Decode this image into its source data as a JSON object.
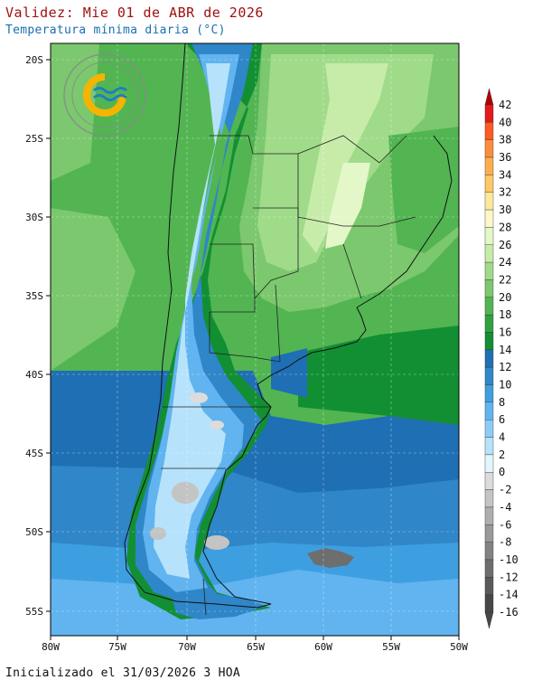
{
  "header": {
    "title": "Validez: Mie 01 de ABR de 2026",
    "subtitle": "Temperatura mínima diaria (°C)"
  },
  "footer": {
    "text": "Inicializado el 31/03/2026 3 HOA"
  },
  "logo": {
    "top_text": "SERVICIO METEOROLÓGICO NACIONAL",
    "bottom_text": "ARGENTINA"
  },
  "map": {
    "lon_labels": [
      "80W",
      "75W",
      "70W",
      "65W",
      "60W",
      "55W",
      "50W"
    ],
    "lat_labels": [
      "20S",
      "25S",
      "30S",
      "35S",
      "40S",
      "45S",
      "50S",
      "55S"
    ]
  },
  "colorbar": {
    "labels": [
      "42",
      "40",
      "38",
      "36",
      "34",
      "32",
      "30",
      "28",
      "26",
      "24",
      "22",
      "20",
      "18",
      "16",
      "14",
      "12",
      "10",
      "8",
      "6",
      "4",
      "2",
      "0",
      "-2",
      "-4",
      "-6",
      "-8",
      "-10",
      "-12",
      "-14",
      "-16"
    ],
    "colors": [
      "#b40000",
      "#e41a1c",
      "#ff5a1f",
      "#fd8d3c",
      "#fdae4b",
      "#fdc866",
      "#fee99a",
      "#fdf8c8",
      "#e4f7c9",
      "#c7ecaa",
      "#a0db8a",
      "#7cc86e",
      "#52b552",
      "#2fa23f",
      "#128f33",
      "#1f6fb4",
      "#2f86c8",
      "#3e9fe0",
      "#61b4ef",
      "#8cccf7",
      "#b6e2fc",
      "#e4f5ff",
      "#dcdcdc",
      "#c4c4c4",
      "#aeaeae",
      "#999999",
      "#838383",
      "#6e6e6e",
      "#5a5a5a",
      "#474747"
    ]
  }
}
